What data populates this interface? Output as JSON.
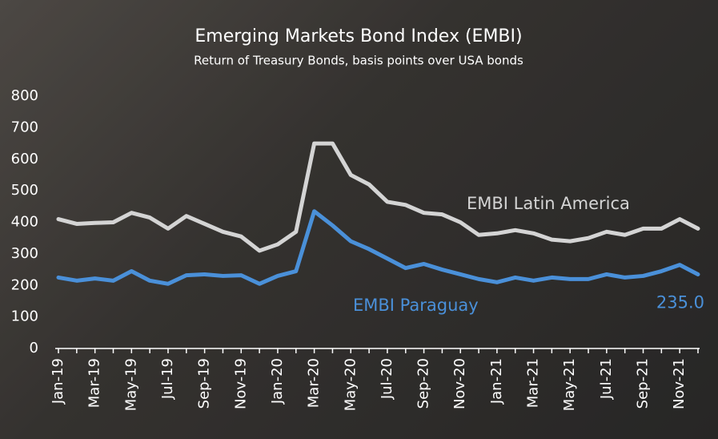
{
  "chart_data": {
    "type": "line",
    "title": "Emerging Markets Bond Index (EMBI)",
    "subtitle": "Return of Treasury Bonds, basis points over USA bonds",
    "categories": [
      "Jan-19",
      null,
      "Mar-19",
      null,
      "May-19",
      null,
      "Jul-19",
      null,
      "Sep-19",
      null,
      "Nov-19",
      null,
      "Jan-20",
      null,
      "Mar-20",
      null,
      "May-20",
      null,
      "Jul-20",
      null,
      "Sep-20",
      null,
      "Nov-20",
      null,
      "Jan-21",
      null,
      "Mar-21",
      null,
      "May-21",
      null,
      "Jul-21",
      null,
      "Sep-21",
      null,
      "Nov-21",
      null
    ],
    "series": [
      {
        "name": "EMBI Latin America",
        "color": "#d4d4d4",
        "values": [
          410,
          395,
          398,
          400,
          430,
          415,
          380,
          420,
          395,
          370,
          355,
          310,
          330,
          370,
          650,
          650,
          550,
          520,
          465,
          455,
          430,
          425,
          400,
          360,
          365,
          375,
          365,
          345,
          340,
          350,
          370,
          360,
          380,
          380,
          410,
          380
        ]
      },
      {
        "name": "EMBI Paraguay",
        "color": "#4a90d9",
        "values": [
          225,
          215,
          222,
          215,
          245,
          215,
          205,
          232,
          235,
          230,
          232,
          205,
          230,
          245,
          435,
          390,
          340,
          315,
          285,
          255,
          268,
          250,
          235,
          220,
          210,
          225,
          215,
          225,
          220,
          220,
          235,
          225,
          230,
          245,
          265,
          235
        ],
        "value_labels": [
          null,
          null,
          null,
          null,
          null,
          null,
          null,
          null,
          null,
          null,
          null,
          null,
          null,
          null,
          null,
          null,
          null,
          null,
          null,
          null,
          null,
          null,
          null,
          null,
          null,
          null,
          null,
          null,
          null,
          null,
          null,
          null,
          null,
          null,
          null,
          "235.0"
        ]
      }
    ],
    "ylim": [
      0,
      800
    ],
    "yticks": [
      0,
      100,
      200,
      300,
      400,
      500,
      600,
      700,
      800
    ]
  }
}
